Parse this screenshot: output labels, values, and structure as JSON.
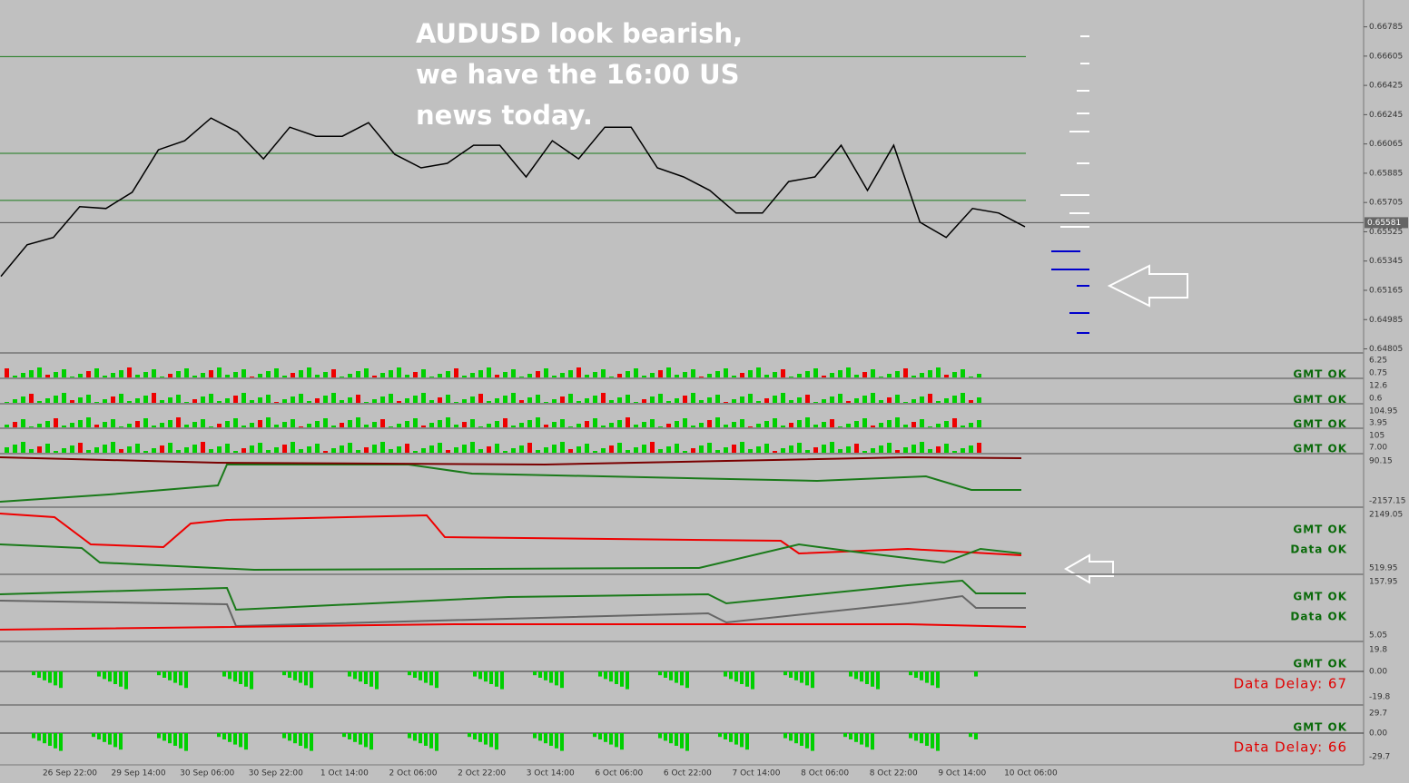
{
  "chart_data": {
    "type": "line",
    "color": "#000000",
    "values": [
      0.65251,
      0.65445,
      0.6549,
      0.65679,
      0.65668,
      0.65768,
      0.66029,
      0.66085,
      0.66224,
      0.6614,
      0.65973,
      0.66168,
      0.66112,
      0.66112,
      0.66196,
      0.66001,
      0.65918,
      0.65946,
      0.66057,
      0.66057,
      0.65862,
      0.66085,
      0.65973,
      0.66168,
      0.66168,
      0.65918,
      0.65862,
      0.65779,
      0.6564,
      0.6564,
      0.65834,
      0.65862,
      0.66057,
      0.65779,
      0.66057,
      0.65584,
      0.6549,
      0.65668,
      0.6564,
      0.65556
    ],
    "levels": [
      0.66602,
      0.66007,
      0.65718
    ],
    "current_price": {
      "value": 0.65581,
      "label": "0.65581"
    },
    "ylim": [
      0.6478,
      0.6695
    ],
    "yticks": [
      0.66785,
      {
        "value": 0.66605,
        "label": "0.66605"
      },
      0.66425,
      0.66245,
      0.66065,
      0.65885,
      0.65705,
      0.65525,
      0.65345,
      0.65165,
      0.64985,
      0.64805
    ],
    "time_labels": [
      "26 Sep 22:00",
      "29 Sep 14:00",
      "30 Sep 06:00",
      "30 Sep 22:00",
      "1 Oct 14:00",
      "2 Oct 06:00",
      "2 Oct 22:00",
      "3 Oct 14:00",
      "6 Oct 06:00",
      "6 Oct 22:00",
      "7 Oct 14:00",
      "8 Oct 06:00",
      "8 Oct 22:00",
      "9 Oct 14:00",
      "10 Oct 06:00"
    ]
  },
  "annotation": [
    "AUDUSD look bearish,",
    "we have the 16:00 US",
    "news today."
  ],
  "panels": [
    {
      "labels": [
        "6.25",
        "0.75"
      ],
      "status": [
        "GMT OK"
      ]
    },
    {
      "labels": [
        "12.6",
        "0.6"
      ],
      "status": [
        "GMT OK"
      ]
    },
    {
      "labels": [
        "104.95",
        "3.95"
      ],
      "status": [
        "GMT OK"
      ]
    },
    {
      "labels": [
        "105",
        "7.00"
      ],
      "status": [
        "GMT OK"
      ]
    },
    {
      "labels": [
        "90.15",
        "-2157.15"
      ],
      "status": []
    },
    {
      "labels": [
        "2149.05",
        "519.95"
      ],
      "status": [
        "GMT OK",
        "Data OK"
      ]
    },
    {
      "labels": [
        "157.95",
        "5.05"
      ],
      "status": [
        "GMT OK",
        "Data OK"
      ]
    },
    {
      "labels": [
        "19.8",
        "0.00",
        "-19.8"
      ],
      "status": [
        "GMT OK",
        "Data Delay: 67"
      ]
    },
    {
      "labels": [
        "29.7",
        "0.00",
        "-29.7"
      ],
      "status": [
        "GMT OK",
        "Data Delay: 66"
      ]
    }
  ]
}
